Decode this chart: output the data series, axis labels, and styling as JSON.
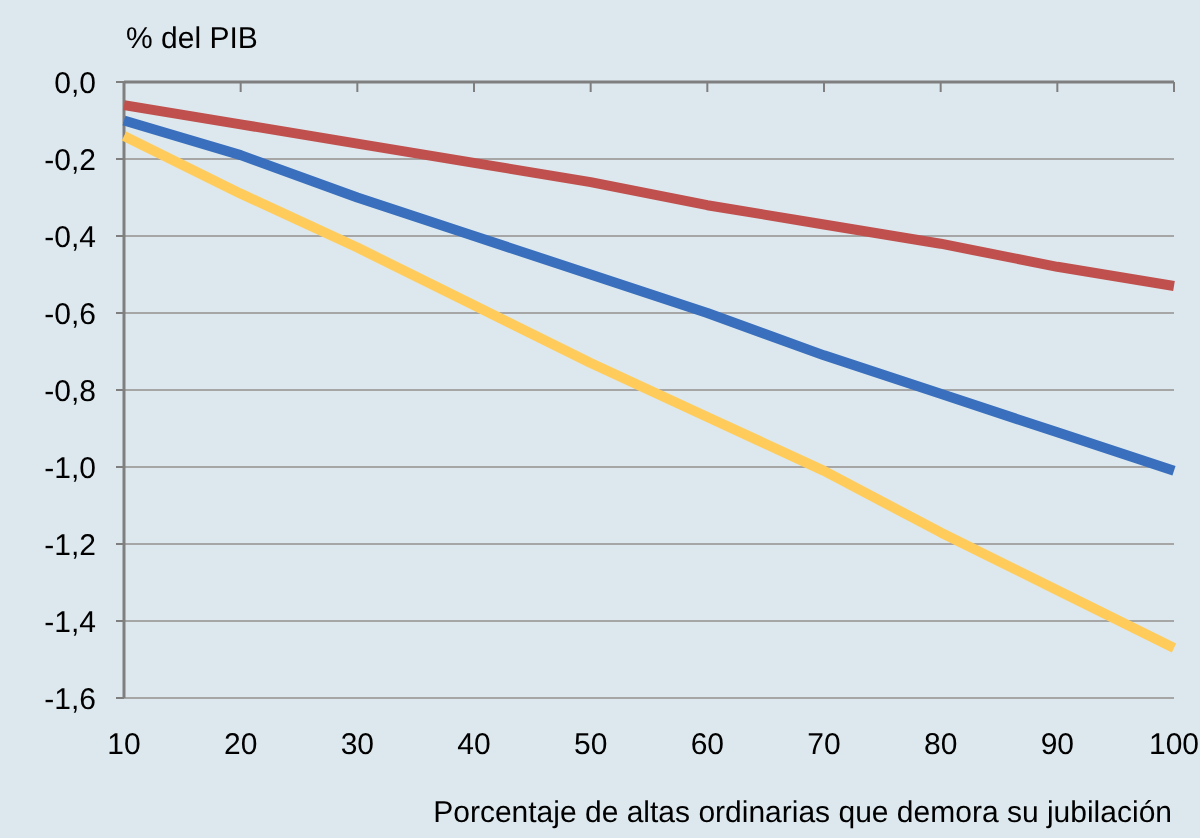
{
  "chart_data": {
    "type": "line",
    "ylabel": "% del PIB",
    "xlabel": "Porcentaje de altas ordinarias que demora su jubilación",
    "x": [
      10,
      20,
      30,
      40,
      50,
      60,
      70,
      80,
      90,
      100
    ],
    "series": [
      {
        "color": "#c0504d",
        "values": [
          -0.06,
          -0.11,
          -0.16,
          -0.21,
          -0.26,
          -0.32,
          -0.37,
          -0.42,
          -0.48,
          -0.53
        ]
      },
      {
        "color": "#3a6fbd",
        "values": [
          -0.1,
          -0.19,
          -0.3,
          -0.4,
          -0.5,
          -0.6,
          -0.71,
          -0.81,
          -0.91,
          -1.01
        ]
      },
      {
        "color": "#ffcc5c",
        "values": [
          -0.14,
          -0.29,
          -0.43,
          -0.58,
          -0.73,
          -0.87,
          -1.01,
          -1.17,
          -1.32,
          -1.47
        ]
      }
    ],
    "xlim": [
      10,
      100
    ],
    "xticks": [
      10,
      20,
      30,
      40,
      50,
      60,
      70,
      80,
      90,
      100
    ],
    "ylim": [
      -1.6,
      0
    ],
    "yticks": [
      {
        "value": 0,
        "label": "0,0"
      },
      {
        "value": -0.2,
        "label": "-0,2"
      },
      {
        "value": -0.4,
        "label": "-0,4"
      },
      {
        "value": -0.6,
        "label": "-0,6"
      },
      {
        "value": -0.8,
        "label": "-0,8"
      },
      {
        "value": -1,
        "label": "-1,0"
      },
      {
        "value": -1.2,
        "label": "-1,2"
      },
      {
        "value": -1.4,
        "label": "-1,4"
      },
      {
        "value": -1.6,
        "label": "-1,6"
      }
    ],
    "grid": "y",
    "marker": "none",
    "line_style": "solid"
  }
}
